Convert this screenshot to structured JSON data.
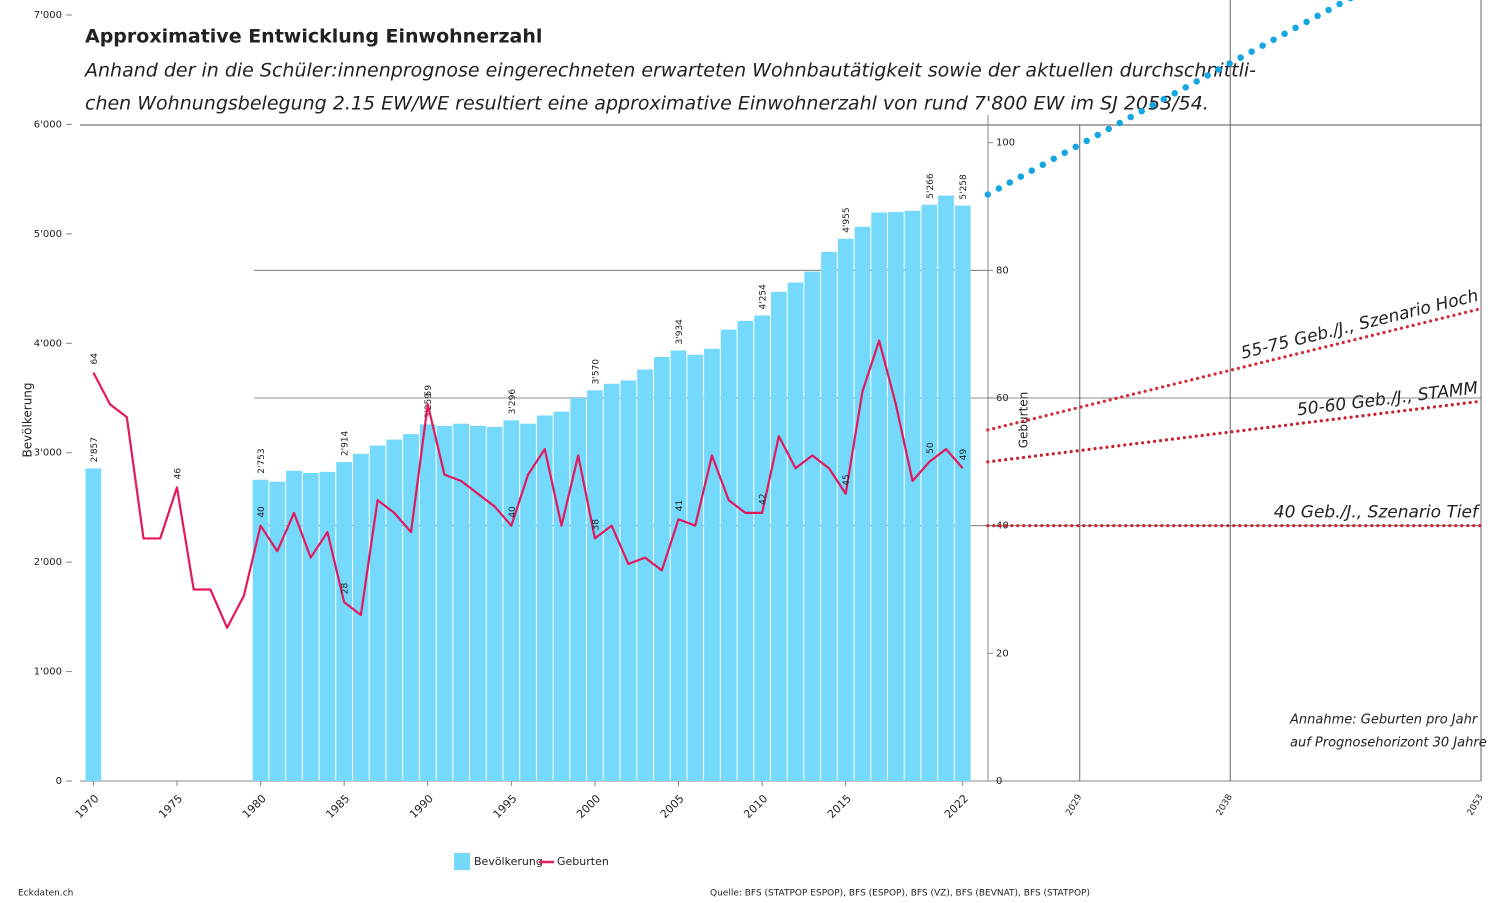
{
  "chart_data": {
    "type": "bar",
    "title": "Approximative Entwicklung Einwohnerzahl",
    "subtitle": [
      "Anhand der in die Schüler:innenprognose eingerechneten erwarteten Wohnbautätigkeit sowie der aktuellen durchschnittli-",
      "chen Wohnungsbelegung 2.15 EW/WE resultiert eine approximative Einwohnerzahl von rund 7'800 EW im SJ 2053/54."
    ],
    "y_label": "Bevölkerung",
    "y2_label": "Geburten",
    "x": [
      1970,
      1971,
      1972,
      1973,
      1974,
      1975,
      1976,
      1977,
      1978,
      1979,
      1980,
      1981,
      1982,
      1983,
      1984,
      1985,
      1986,
      1987,
      1988,
      1989,
      1990,
      1991,
      1992,
      1993,
      1994,
      1995,
      1996,
      1997,
      1998,
      1999,
      2000,
      2001,
      2002,
      2003,
      2004,
      2005,
      2006,
      2007,
      2008,
      2009,
      2010,
      2011,
      2012,
      2013,
      2014,
      2015,
      2016,
      2017,
      2018,
      2019,
      2020,
      2021,
      2022
    ],
    "xlim": [
      1969.2,
      2053
    ],
    "xticks": [
      1970,
      1975,
      1980,
      1985,
      1990,
      1995,
      2000,
      2005,
      2010,
      2015,
      2022
    ],
    "ylim": [
      0,
      7000
    ],
    "yticks": [
      0,
      {
        "value": 1000,
        "label": "1'000"
      },
      {
        "value": 2000,
        "label": "2'000"
      },
      {
        "value": 3000,
        "label": "3'000"
      },
      {
        "value": 4000,
        "label": "4'000"
      },
      {
        "value": 5000,
        "label": "5'000"
      },
      {
        "value": 6000,
        "label": "6'000"
      },
      {
        "value": 7000,
        "label": "7'000"
      }
    ],
    "y2lim": [
      0,
      120
    ],
    "y2ticks": [
      0,
      20,
      40,
      60,
      80,
      100
    ],
    "series": [
      {
        "name": "Bevölkerung",
        "type": "bar",
        "color": "#74d9fb",
        "values": [
          2857,
          null,
          null,
          null,
          null,
          null,
          null,
          null,
          null,
          null,
          2753,
          2735,
          2835,
          2815,
          2825,
          2914,
          2990,
          3065,
          3120,
          3170,
          3259,
          3245,
          3265,
          3245,
          3235,
          3296,
          3265,
          3340,
          3375,
          3500,
          3570,
          3630,
          3660,
          3760,
          3875,
          3934,
          3895,
          3950,
          4125,
          4205,
          4254,
          4470,
          4555,
          4655,
          4835,
          4955,
          5065,
          5195,
          5200,
          5210,
          5266,
          5350,
          5258
        ],
        "value_labels": [
          "2'857",
          null,
          null,
          null,
          null,
          null,
          null,
          null,
          null,
          null,
          "2'753",
          null,
          null,
          null,
          null,
          "2'914",
          null,
          null,
          null,
          null,
          "3'259",
          null,
          null,
          null,
          null,
          "3'296",
          null,
          null,
          null,
          null,
          "3'570",
          null,
          null,
          null,
          null,
          "3'934",
          null,
          null,
          null,
          null,
          "4'254",
          null,
          null,
          null,
          null,
          "4'955",
          null,
          null,
          null,
          null,
          "5'266",
          null,
          "5'258"
        ]
      },
      {
        "name": "Geburten",
        "type": "line",
        "axis": "y2",
        "color": "#e2195c",
        "values": [
          64,
          59,
          57,
          38,
          38,
          46,
          30,
          30,
          24,
          29,
          40,
          36,
          42,
          35,
          39,
          28,
          26,
          44,
          42,
          39,
          59,
          48,
          47,
          45,
          43,
          40,
          48,
          52,
          40,
          51,
          38,
          40,
          34,
          35,
          33,
          41,
          40,
          51,
          44,
          42,
          42,
          54,
          49,
          51,
          49,
          45,
          61,
          69,
          59,
          47,
          50,
          52,
          49
        ],
        "value_labels": [
          "64",
          null,
          null,
          null,
          null,
          "46",
          null,
          null,
          null,
          null,
          "40",
          null,
          null,
          null,
          null,
          "28",
          null,
          null,
          null,
          null,
          "59",
          null,
          null,
          null,
          null,
          "40",
          null,
          null,
          null,
          null,
          "38",
          null,
          null,
          null,
          null,
          "41",
          null,
          null,
          null,
          null,
          "42",
          null,
          null,
          null,
          null,
          "45",
          null,
          null,
          null,
          null,
          "50",
          null,
          "49"
        ]
      }
    ],
    "projection": {
      "xticks": [
        2029,
        2038,
        2053
      ],
      "population": {
        "color": "#14a6e0",
        "x": [
          2023.5,
          2053
        ],
        "values": [
          5360,
          7800
        ]
      },
      "scenarios": [
        {
          "label": "55-75 Geb./J., Szenario Hoch",
          "color": "#d42a35",
          "label_color": "#d42a35",
          "x": [
            2023.5,
            2053
          ],
          "values": [
            55,
            74
          ]
        },
        {
          "label": "50-60 Geb./J., STAMM",
          "color": "#c8202e",
          "label_color": "#333333",
          "x": [
            2023.5,
            2053
          ],
          "values": [
            50,
            59.5
          ]
        },
        {
          "label": "40 Geb./J., Szenario Tief",
          "color": "#c8202e",
          "label_color": "#2a9a3a",
          "x": [
            2023.5,
            2053
          ],
          "values": [
            40,
            40
          ]
        }
      ],
      "note": [
        "Annahme: Geburten pro Jahr",
        "auf Prognosehorizont 30 Jahre"
      ]
    },
    "footer": {
      "left": "Eckdaten.ch",
      "source": "Quelle: BFS (STATPOP ESPOP), BFS (ESPOP), BFS (VZ), BFS (BEVNAT), BFS (STATPOP)"
    }
  }
}
